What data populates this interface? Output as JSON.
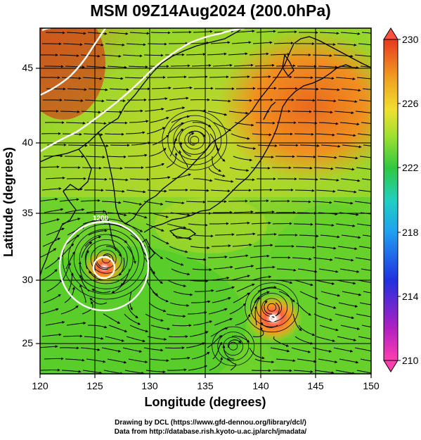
{
  "title": "MSM 09Z14Aug2024 (200.0hPa)",
  "x_axis_label": "Longitude (degrees)",
  "y_axis_label": "Latitude  (degrees)",
  "x_ticks": [
    "120",
    "125",
    "130",
    "135",
    "140",
    "145",
    "150"
  ],
  "y_ticks": [
    "25",
    "30",
    "35",
    "40",
    "45"
  ],
  "colorbar_ticks": [
    "210",
    "214",
    "218",
    "222",
    "226",
    "230"
  ],
  "contour_label": "1200",
  "footer_line1": "Drawing by DCL (https://www.gfd-dennou.org/library/dcl/)",
  "footer_line2": "Data from http://database.rish.kyoto-u.ac.jp/arch/jmadata/",
  "colors": {
    "cold_tip": "#ff3fb0",
    "warm_tip": "#ff5040",
    "field_green": "#58d22a",
    "field_orange": "#f08a22",
    "field_red": "#e03a1a"
  },
  "map_data": {
    "variable": "200.0hPa field with streamlines",
    "lon_range": [
      120,
      150
    ],
    "lat_range": [
      22.5,
      47.5
    ],
    "colorbar_range": [
      210,
      230
    ],
    "vortex_centers": [
      [
        126,
        30.8
      ],
      [
        141,
        27.3
      ],
      [
        134,
        39.4
      ],
      [
        137.5,
        24.5
      ]
    ]
  }
}
